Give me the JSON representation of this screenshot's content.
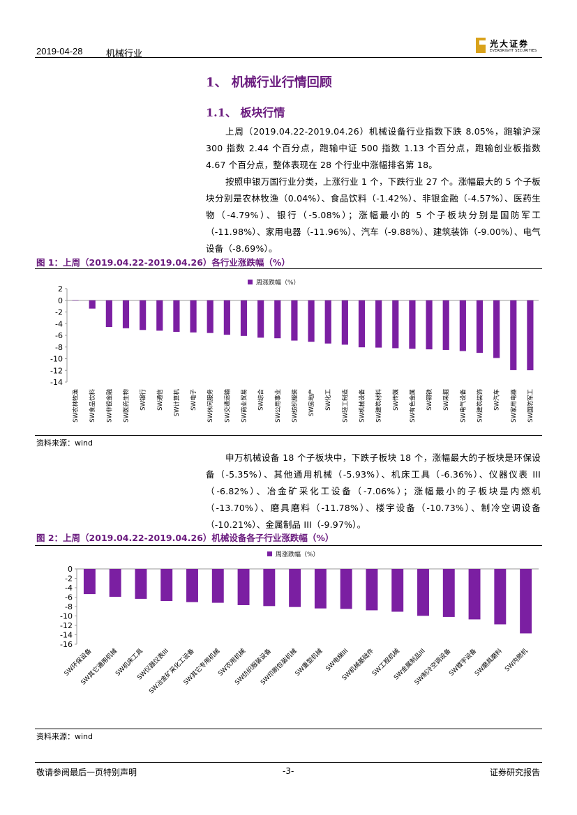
{
  "header": {
    "date": "2019-04-28",
    "industry": "机械行业",
    "logo_cn": "光大证券",
    "logo_en": "EVERBRIGHT SECURITIES"
  },
  "section": {
    "h1": "1、 机械行业行情回顾",
    "h2": "1.1、 板块行情"
  },
  "paragraphs": [
    "上周（2019.04.22-2019.04.26）机械设备行业指数下跌 8.05%，跑输沪深 300 指数 2.44 个百分点，跑输中证 500 指数 1.13 个百分点，跑输创业板指数 4.67 个百分点，整体表现在 28 个行业中涨幅排名第 18。",
    "按照申银万国行业分类，上涨行业 1 个，下跌行业 27 个。涨幅最大的 5 个子板块分别是农林牧渔（0.04%）、食品饮料（-1.42%）、非银金融（-4.57%）、医药生物（-4.79%）、银行（-5.08%）；涨幅最小的 5 个子板块分别是国防军工（-11.98%）、家用电器（-11.96%）、汽车（-9.88%）、建筑装饰（-9.00%）、电气设备（-8.69%）。",
    "申万机械设备 18 个子板块中，下跌子板块 18 个，涨幅最大的子板块是环保设备（-5.35%）、其他通用机械（-5.93%）、机床工具（-6.36%）、仪器仪表 III（-6.82%）、冶金矿采化工设备（-7.06%）；涨幅最小的子板块是内燃机（-13.70%）、磨具磨料（-11.78%）、楼宇设备（-10.73%）、制冷空调设备（-10.21%）、金属制品 III（-9.97%）。"
  ],
  "figure1": {
    "title": "图 1：上周（2019.04.22-2019.04.26）各行业涨跌幅（%）",
    "source": "资料来源：wind"
  },
  "figure2": {
    "title": "图 2：上周（2019.04.22-2019.04.26）机械设备各子行业涨跌幅（%）",
    "source": "资料来源：wind"
  },
  "footer": {
    "left": "敬请参阅最后一页特别声明",
    "center": "-3-",
    "right": "证券研究报告"
  },
  "colors": {
    "bar": "#7b1fa2",
    "heading": "#6a1b7e"
  },
  "chart_data": [
    {
      "type": "bar",
      "title": "",
      "legend": "周涨跌幅（%）",
      "legend_position": "top-center",
      "ylim": [
        -14,
        2
      ],
      "yticks": [
        2,
        0,
        -2,
        -4,
        -6,
        -8,
        -10,
        -12,
        -14
      ],
      "categories": [
        "SW农林牧渔",
        "SW食品饮料",
        "SW非银金融",
        "SW医药生物",
        "SW银行",
        "SW通信",
        "SW计算机",
        "SW电子",
        "SW休闲服务",
        "SW交通运输",
        "SW商业贸易",
        "SW综合",
        "SW公用事业",
        "SW纺织服装",
        "SW房地产",
        "SW化工",
        "SW轻工制造",
        "SW机械设备",
        "SW建筑材料",
        "SW传媒",
        "SW有色金属",
        "SW钢铁",
        "SW采掘",
        "SW电气设备",
        "SW建筑装饰",
        "SW汽车",
        "SW家用电器",
        "SW国防军工"
      ],
      "values": [
        0.04,
        -1.42,
        -4.57,
        -4.79,
        -5.08,
        -5.2,
        -5.4,
        -5.5,
        -5.6,
        -5.9,
        -6.1,
        -6.4,
        -6.5,
        -6.9,
        -7.1,
        -7.4,
        -7.6,
        -8.05,
        -8.1,
        -8.2,
        -8.3,
        -8.4,
        -8.5,
        -8.69,
        -9.0,
        -9.88,
        -11.96,
        -11.98
      ]
    },
    {
      "type": "bar",
      "title": "",
      "legend": "周涨跌幅（%）",
      "legend_position": "top-center",
      "ylim": [
        -16,
        0
      ],
      "yticks": [
        0,
        -2,
        -4,
        -6,
        -8,
        -10,
        -12,
        -14,
        -16
      ],
      "categories": [
        "SW环保设备",
        "SW其它通用机械",
        "SW机床工具",
        "SW仪器仪表III",
        "SW冶金矿采化工设备",
        "SW其它专用机械",
        "SW农用机械",
        "SW纺织服装设备",
        "SW印刷包装机械",
        "SW重型机械",
        "SW电梯III",
        "SW机械基础件",
        "SW工程机械",
        "SW金属制品III",
        "SW制冷空调设备",
        "SW楼宇设备",
        "SW磨具磨料",
        "SW内燃机"
      ],
      "values": [
        -5.35,
        -5.93,
        -6.36,
        -6.82,
        -7.06,
        -7.2,
        -7.7,
        -7.9,
        -8.1,
        -8.4,
        -8.5,
        -8.8,
        -9.1,
        -9.97,
        -10.21,
        -10.73,
        -11.78,
        -13.7
      ]
    }
  ]
}
